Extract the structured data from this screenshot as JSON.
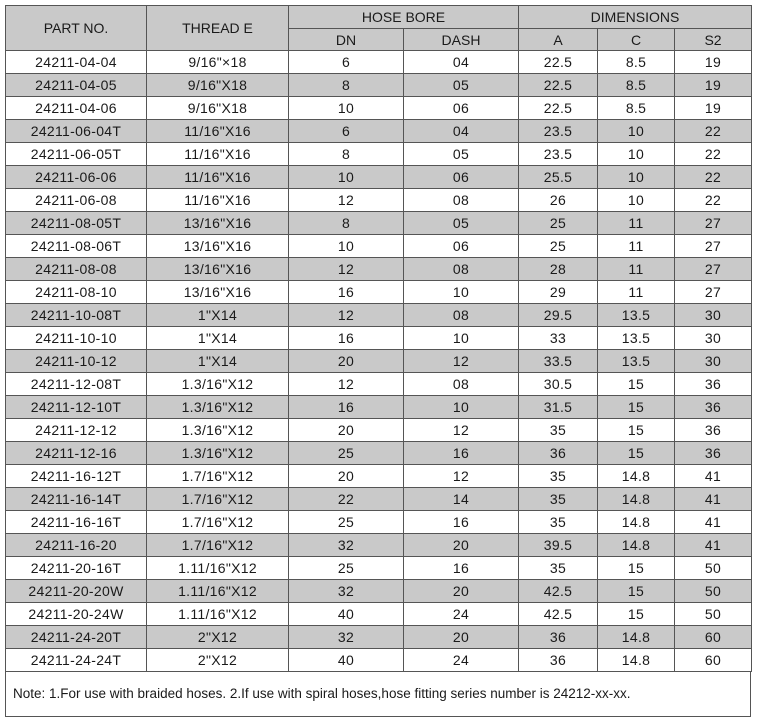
{
  "header": {
    "part_no": "PART NO.",
    "thread": "THREAD E",
    "hose_bore": "HOSE BORE",
    "dimensions": "DIMENSIONS",
    "dn": "DN",
    "dash": "DASH",
    "a": "A",
    "c": "C",
    "s2": "S2"
  },
  "rows": [
    [
      "24211-04-04",
      "9/16\"×18",
      "6",
      "04",
      "22.5",
      "8.5",
      "19"
    ],
    [
      "24211-04-05",
      "9/16\"X18",
      "8",
      "05",
      "22.5",
      "8.5",
      "19"
    ],
    [
      "24211-04-06",
      "9/16\"X18",
      "10",
      "06",
      "22.5",
      "8.5",
      "19"
    ],
    [
      "24211-06-04T",
      "11/16\"X16",
      "6",
      "04",
      "23.5",
      "10",
      "22"
    ],
    [
      "24211-06-05T",
      "11/16\"X16",
      "8",
      "05",
      "23.5",
      "10",
      "22"
    ],
    [
      "24211-06-06",
      "11/16\"X16",
      "10",
      "06",
      "25.5",
      "10",
      "22"
    ],
    [
      "24211-06-08",
      "11/16\"X16",
      "12",
      "08",
      "26",
      "10",
      "22"
    ],
    [
      "24211-08-05T",
      "13/16\"X16",
      "8",
      "05",
      "25",
      "11",
      "27"
    ],
    [
      "24211-08-06T",
      "13/16\"X16",
      "10",
      "06",
      "25",
      "11",
      "27"
    ],
    [
      "24211-08-08",
      "13/16\"X16",
      "12",
      "08",
      "28",
      "11",
      "27"
    ],
    [
      "24211-08-10",
      "13/16\"X16",
      "16",
      "10",
      "29",
      "11",
      "27"
    ],
    [
      "24211-10-08T",
      "1\"X14",
      "12",
      "08",
      "29.5",
      "13.5",
      "30"
    ],
    [
      "24211-10-10",
      "1\"X14",
      "16",
      "10",
      "33",
      "13.5",
      "30"
    ],
    [
      "24211-10-12",
      "1\"X14",
      "20",
      "12",
      "33.5",
      "13.5",
      "30"
    ],
    [
      "24211-12-08T",
      "1.3/16\"X12",
      "12",
      "08",
      "30.5",
      "15",
      "36"
    ],
    [
      "24211-12-10T",
      "1.3/16\"X12",
      "16",
      "10",
      "31.5",
      "15",
      "36"
    ],
    [
      "24211-12-12",
      "1.3/16\"X12",
      "20",
      "12",
      "35",
      "15",
      "36"
    ],
    [
      "24211-12-16",
      "1.3/16\"X12",
      "25",
      "16",
      "36",
      "15",
      "36"
    ],
    [
      "24211-16-12T",
      "1.7/16\"X12",
      "20",
      "12",
      "35",
      "14.8",
      "41"
    ],
    [
      "24211-16-14T",
      "1.7/16\"X12",
      "22",
      "14",
      "35",
      "14.8",
      "41"
    ],
    [
      "24211-16-16T",
      "1.7/16\"X12",
      "25",
      "16",
      "35",
      "14.8",
      "41"
    ],
    [
      "24211-16-20",
      "1.7/16\"X12",
      "32",
      "20",
      "39.5",
      "14.8",
      "41"
    ],
    [
      "24211-20-16T",
      "1.11/16\"X12",
      "25",
      "16",
      "35",
      "15",
      "50"
    ],
    [
      "24211-20-20W",
      "1.11/16\"X12",
      "32",
      "20",
      "42.5",
      "15",
      "50"
    ],
    [
      "24211-20-24W",
      "1.11/16\"X12",
      "40",
      "24",
      "42.5",
      "15",
      "50"
    ],
    [
      "24211-24-20T",
      "2\"X12",
      "32",
      "20",
      "36",
      "14.8",
      "60"
    ],
    [
      "24211-24-24T",
      "2\"X12",
      "40",
      "24",
      "36",
      "14.8",
      "60"
    ]
  ],
  "note": "Note: 1.For use with braided hoses.   2.If use with spiral hoses,hose fitting series number is 24212-xx-xx.",
  "colors": {
    "shade": "#c9c9c9",
    "border": "#555555"
  }
}
